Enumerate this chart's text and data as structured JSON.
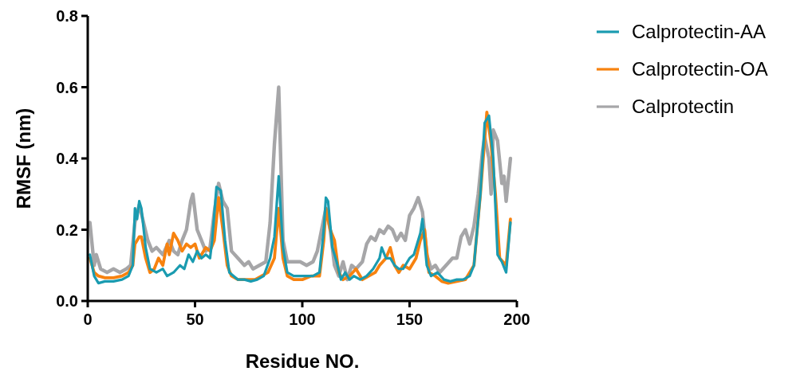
{
  "chart_data": {
    "type": "line",
    "xlabel": "Residue NO.",
    "ylabel": "RMSF (nm)",
    "xlim": [
      0,
      200
    ],
    "ylim": [
      0,
      0.8
    ],
    "xticks": [
      0,
      50,
      100,
      150,
      200
    ],
    "yticks": [
      {
        "value": 0,
        "label": "0.0"
      },
      0.2,
      0.4,
      0.6,
      0.8
    ],
    "grid": false,
    "legend": "top right",
    "marker": "none",
    "line_style": "solid",
    "series": [
      {
        "name": "Calprotectin-AA",
        "color": "#1a9bb0",
        "x": [
          1,
          3,
          5,
          8,
          12,
          16,
          19,
          21,
          22,
          23,
          24,
          25,
          27,
          29,
          32,
          35,
          37,
          40,
          43,
          45,
          47,
          49,
          51,
          53,
          55,
          57,
          58,
          60,
          62,
          64,
          66,
          68,
          70,
          73,
          76,
          79,
          82,
          85,
          87,
          89,
          91,
          93,
          96,
          99,
          102,
          105,
          108,
          110,
          111,
          112,
          114,
          116,
          118,
          120,
          122,
          124,
          127,
          130,
          133,
          136,
          137,
          139,
          141,
          143,
          145,
          147,
          150,
          152,
          155,
          156,
          158,
          160,
          163,
          166,
          169,
          172,
          175,
          178,
          180,
          183,
          185,
          187,
          189,
          191,
          193,
          195,
          197
        ],
        "values": [
          0.13,
          0.07,
          0.05,
          0.055,
          0.055,
          0.06,
          0.07,
          0.1,
          0.26,
          0.23,
          0.28,
          0.26,
          0.15,
          0.09,
          0.08,
          0.09,
          0.07,
          0.08,
          0.1,
          0.09,
          0.13,
          0.11,
          0.14,
          0.12,
          0.13,
          0.12,
          0.17,
          0.32,
          0.31,
          0.17,
          0.08,
          0.07,
          0.06,
          0.06,
          0.055,
          0.06,
          0.07,
          0.12,
          0.18,
          0.35,
          0.15,
          0.08,
          0.07,
          0.07,
          0.07,
          0.07,
          0.08,
          0.2,
          0.29,
          0.28,
          0.15,
          0.11,
          0.06,
          0.08,
          0.06,
          0.07,
          0.06,
          0.07,
          0.09,
          0.12,
          0.15,
          0.12,
          0.12,
          0.1,
          0.09,
          0.09,
          0.12,
          0.13,
          0.19,
          0.23,
          0.1,
          0.07,
          0.08,
          0.06,
          0.055,
          0.06,
          0.06,
          0.07,
          0.1,
          0.3,
          0.5,
          0.52,
          0.4,
          0.13,
          0.11,
          0.08,
          0.22
        ]
      },
      {
        "name": "Calprotectin-OA",
        "color": "#f7820f",
        "x": [
          1,
          3,
          5,
          8,
          12,
          16,
          19,
          21,
          22,
          24,
          25,
          27,
          29,
          31,
          33,
          35,
          37,
          38,
          40,
          42,
          44,
          46,
          48,
          50,
          52,
          55,
          57,
          59,
          61,
          63,
          65,
          67,
          70,
          74,
          78,
          81,
          84,
          87,
          89,
          91,
          93,
          96,
          100,
          104,
          108,
          110,
          111,
          113,
          115,
          117,
          119,
          122,
          125,
          128,
          131,
          134,
          136,
          139,
          141,
          143,
          145,
          147,
          150,
          153,
          155,
          157,
          159,
          162,
          165,
          168,
          172,
          176,
          180,
          183,
          186,
          188,
          190,
          192,
          195,
          197
        ],
        "values": [
          0.12,
          0.08,
          0.07,
          0.065,
          0.065,
          0.07,
          0.08,
          0.1,
          0.16,
          0.18,
          0.18,
          0.12,
          0.08,
          0.09,
          0.12,
          0.1,
          0.16,
          0.13,
          0.19,
          0.17,
          0.14,
          0.16,
          0.15,
          0.16,
          0.12,
          0.15,
          0.14,
          0.17,
          0.29,
          0.2,
          0.1,
          0.07,
          0.06,
          0.06,
          0.06,
          0.07,
          0.08,
          0.12,
          0.26,
          0.12,
          0.07,
          0.06,
          0.06,
          0.07,
          0.07,
          0.17,
          0.26,
          0.2,
          0.17,
          0.08,
          0.06,
          0.07,
          0.09,
          0.06,
          0.07,
          0.08,
          0.1,
          0.12,
          0.15,
          0.1,
          0.08,
          0.1,
          0.09,
          0.12,
          0.17,
          0.2,
          0.08,
          0.07,
          0.055,
          0.05,
          0.055,
          0.06,
          0.1,
          0.3,
          0.53,
          0.44,
          0.3,
          0.12,
          0.1,
          0.23
        ]
      },
      {
        "name": "Calprotectin",
        "color": "#a6a6a8",
        "x": [
          1,
          3,
          4,
          6,
          9,
          12,
          15,
          18,
          20,
          22,
          24,
          26,
          28,
          30,
          32,
          35,
          38,
          40,
          42,
          44,
          46,
          48,
          49,
          51,
          53,
          55,
          57,
          59,
          61,
          63,
          65,
          67,
          70,
          73,
          75,
          77,
          80,
          83,
          85,
          87,
          89,
          91,
          93,
          96,
          99,
          102,
          105,
          107,
          109,
          111,
          113,
          115,
          117,
          119,
          121,
          123,
          125,
          128,
          130,
          132,
          134,
          136,
          138,
          140,
          142,
          144,
          146,
          148,
          150,
          152,
          154,
          156,
          158,
          160,
          162,
          164,
          167,
          170,
          172,
          174,
          176,
          178,
          180,
          182,
          184,
          185,
          187,
          188,
          189,
          191,
          193,
          194,
          195,
          197
        ],
        "values": [
          0.22,
          0.1,
          0.13,
          0.09,
          0.08,
          0.09,
          0.08,
          0.09,
          0.1,
          0.22,
          0.27,
          0.22,
          0.17,
          0.14,
          0.15,
          0.13,
          0.17,
          0.14,
          0.13,
          0.17,
          0.2,
          0.28,
          0.3,
          0.2,
          0.17,
          0.14,
          0.15,
          0.25,
          0.33,
          0.28,
          0.26,
          0.14,
          0.12,
          0.1,
          0.11,
          0.09,
          0.1,
          0.11,
          0.22,
          0.44,
          0.6,
          0.17,
          0.11,
          0.11,
          0.11,
          0.1,
          0.11,
          0.14,
          0.2,
          0.26,
          0.2,
          0.1,
          0.07,
          0.11,
          0.06,
          0.1,
          0.09,
          0.11,
          0.16,
          0.18,
          0.17,
          0.2,
          0.19,
          0.21,
          0.2,
          0.17,
          0.19,
          0.17,
          0.24,
          0.26,
          0.29,
          0.25,
          0.13,
          0.09,
          0.1,
          0.08,
          0.1,
          0.12,
          0.12,
          0.18,
          0.2,
          0.16,
          0.21,
          0.3,
          0.42,
          0.46,
          0.4,
          0.3,
          0.48,
          0.45,
          0.33,
          0.35,
          0.28,
          0.4
        ]
      }
    ]
  }
}
